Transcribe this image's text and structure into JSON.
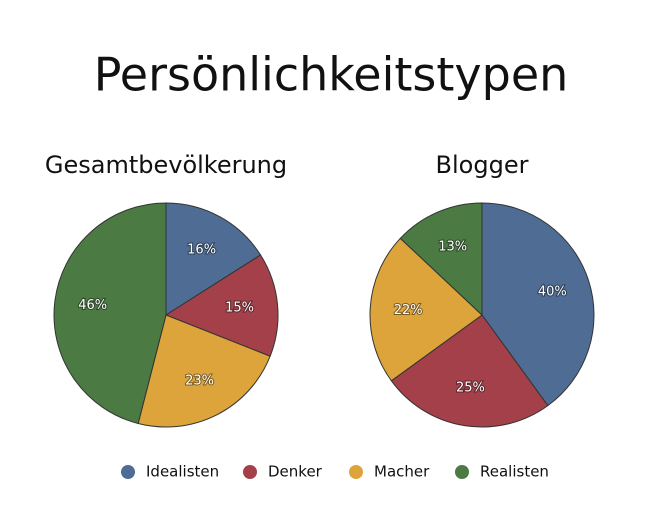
{
  "title": "Persönlichkeitstypen",
  "chart_data": [
    {
      "type": "pie",
      "title": "Gesamtbevölkerung",
      "categories": [
        "Idealisten",
        "Denker",
        "Macher",
        "Realisten"
      ],
      "values": [
        16,
        15,
        23,
        46
      ],
      "value_labels": [
        "16%",
        "15%",
        "23%",
        "46%"
      ],
      "colors": [
        "#4f6c94",
        "#a3404a",
        "#dca43b",
        "#4b7a43"
      ]
    },
    {
      "type": "pie",
      "title": "Blogger",
      "categories": [
        "Idealisten",
        "Denker",
        "Macher",
        "Realisten"
      ],
      "values": [
        40,
        25,
        22,
        13
      ],
      "value_labels": [
        "40%",
        "25%",
        "22%",
        "13%"
      ],
      "colors": [
        "#4f6c94",
        "#a3404a",
        "#dca43b",
        "#4b7a43"
      ]
    }
  ]
}
